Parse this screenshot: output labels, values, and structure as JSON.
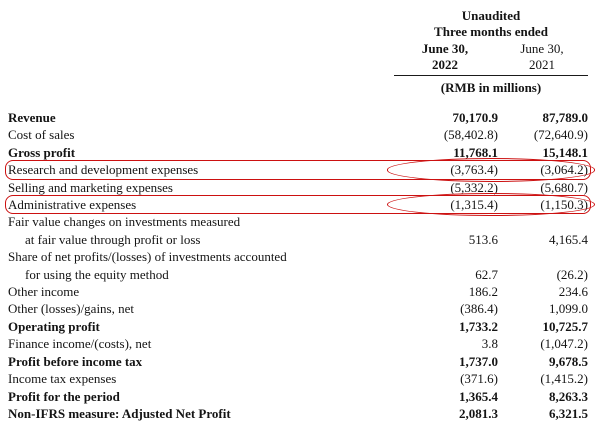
{
  "header": {
    "unaudited": "Unaudited",
    "period": "Three months ended",
    "col_2022": {
      "month": "June 30,",
      "year": "2022"
    },
    "col_2021": {
      "month": "June 30,",
      "year": "2021"
    },
    "unit": "(RMB in millions)"
  },
  "annotation_color": "#cc1111",
  "rows": [
    {
      "label": "Revenue",
      "indent": false,
      "bold": true,
      "highlight": false,
      "v2022": "70,170.9",
      "v2021": "87,789.0"
    },
    {
      "label": "Cost of sales",
      "indent": false,
      "bold": false,
      "highlight": false,
      "v2022": "(58,402.8)",
      "v2021": "(72,640.9)"
    },
    {
      "label": "Gross profit",
      "indent": false,
      "bold": true,
      "highlight": false,
      "v2022": "11,768.1",
      "v2021": "15,148.1"
    },
    {
      "label": "Research and development expenses",
      "indent": false,
      "bold": false,
      "highlight": true,
      "v2022": "(3,763.4)",
      "v2021": "(3,064.2)"
    },
    {
      "label": "Selling and marketing expenses",
      "indent": false,
      "bold": false,
      "highlight": false,
      "v2022": "(5,332.2)",
      "v2021": "(5,680.7)"
    },
    {
      "label": "Administrative expenses",
      "indent": false,
      "bold": false,
      "highlight": true,
      "v2022": "(1,315.4)",
      "v2021": "(1,150.3)"
    },
    {
      "label": "Fair value changes on investments measured",
      "indent": false,
      "bold": false,
      "highlight": false,
      "v2022": "",
      "v2021": ""
    },
    {
      "label": "at fair value through profit or loss",
      "indent": true,
      "bold": false,
      "highlight": false,
      "v2022": "513.6",
      "v2021": "4,165.4"
    },
    {
      "label": "Share of net profits/(losses) of investments accounted",
      "indent": false,
      "bold": false,
      "highlight": false,
      "v2022": "",
      "v2021": ""
    },
    {
      "label": "for using the equity method",
      "indent": true,
      "bold": false,
      "highlight": false,
      "v2022": "62.7",
      "v2021": "(26.2)"
    },
    {
      "label": "Other income",
      "indent": false,
      "bold": false,
      "highlight": false,
      "v2022": "186.2",
      "v2021": "234.6"
    },
    {
      "label": "Other (losses)/gains, net",
      "indent": false,
      "bold": false,
      "highlight": false,
      "v2022": "(386.4)",
      "v2021": "1,099.0"
    },
    {
      "label": "Operating profit",
      "indent": false,
      "bold": true,
      "highlight": false,
      "v2022": "1,733.2",
      "v2021": "10,725.7"
    },
    {
      "label": "Finance income/(costs), net",
      "indent": false,
      "bold": false,
      "highlight": false,
      "v2022": "3.8",
      "v2021": "(1,047.2)"
    },
    {
      "label": "Profit before income tax",
      "indent": false,
      "bold": true,
      "highlight": false,
      "v2022": "1,737.0",
      "v2021": "9,678.5"
    },
    {
      "label": "Income tax expenses",
      "indent": false,
      "bold": false,
      "highlight": false,
      "v2022": "(371.6)",
      "v2021": "(1,415.2)"
    },
    {
      "label": "Profit for the period",
      "indent": false,
      "bold": true,
      "highlight": false,
      "v2022": "1,365.4",
      "v2021": "8,263.3"
    },
    {
      "label": "Non-IFRS measure: Adjusted Net Profit",
      "indent": false,
      "bold": true,
      "highlight": false,
      "v2022": "2,081.3",
      "v2021": "6,321.5"
    }
  ]
}
